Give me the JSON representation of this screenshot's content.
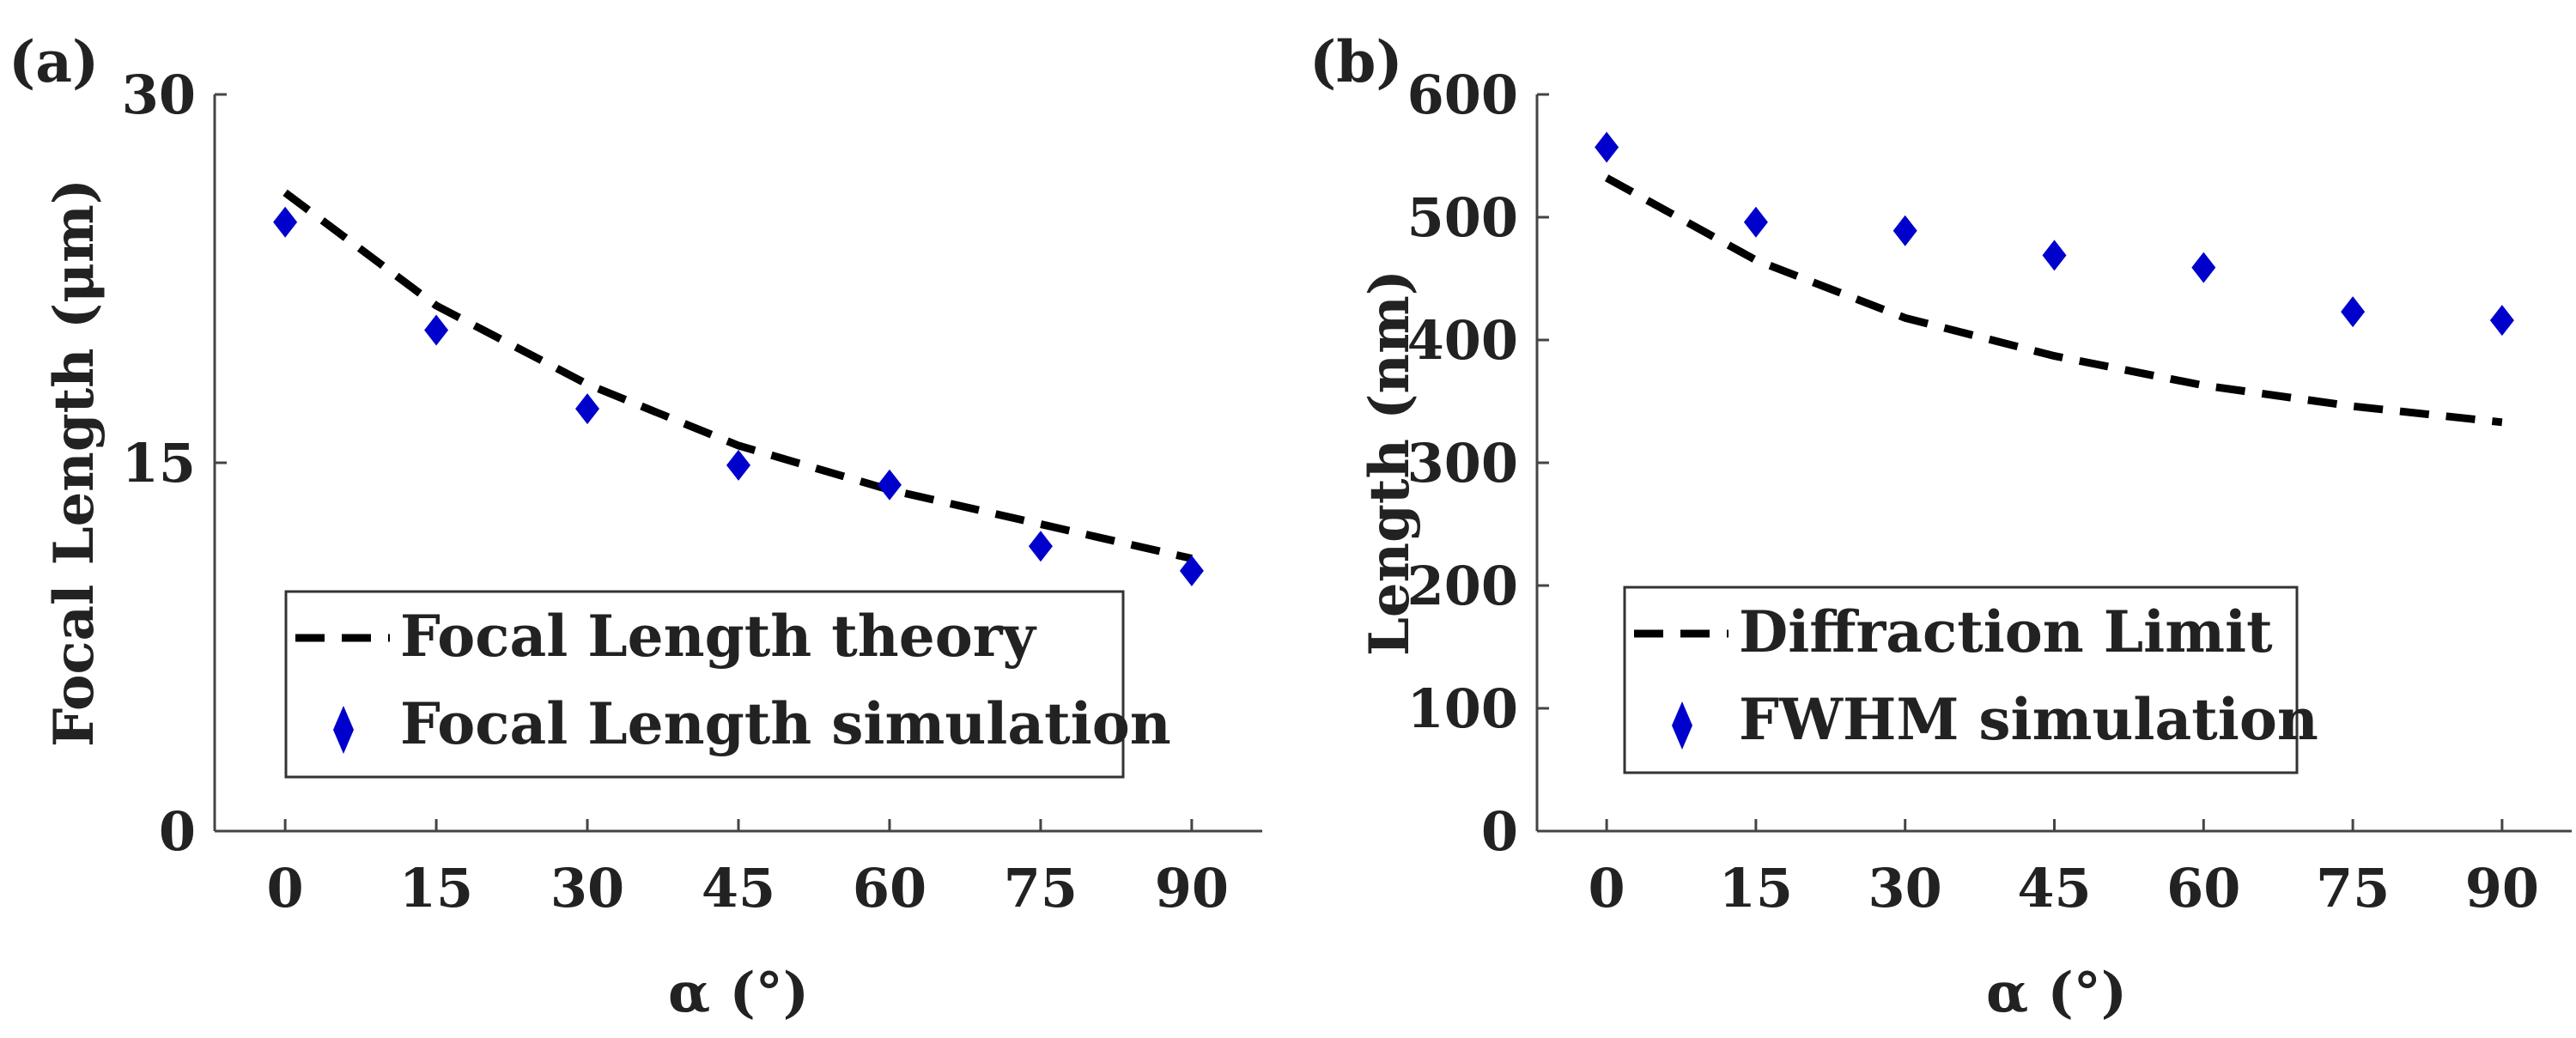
{
  "colors": {
    "marker": "#0000CC",
    "line": "#000000",
    "axis": "#444444",
    "text": "#222222"
  },
  "chart_data": [
    {
      "type": "line",
      "panel_label": "(a)",
      "xlabel": "α (°)",
      "ylabel": "Focal Length (μm)",
      "x": [
        0,
        15,
        30,
        45,
        60,
        75,
        90
      ],
      "xticks": [
        "0",
        "15",
        "30",
        "45",
        "60",
        "75",
        "90"
      ],
      "yticks": [
        "0",
        "15",
        "30"
      ],
      "xlim": [
        -7,
        97
      ],
      "ylim": [
        0,
        30
      ],
      "legend_position": "bottom-right",
      "series": [
        {
          "name": "Focal Length theory",
          "style": "dashed",
          "x": [
            0,
            15,
            30,
            45,
            60,
            75,
            90
          ],
          "values": [
            26.0,
            21.4,
            18.2,
            15.7,
            13.9,
            12.5,
            11.1
          ]
        },
        {
          "name": "Focal Length simulation",
          "style": "diamond",
          "x": [
            0,
            15,
            30,
            45,
            60,
            75,
            90
          ],
          "values": [
            24.8,
            20.4,
            17.2,
            14.9,
            14.1,
            11.6,
            10.6
          ]
        }
      ]
    },
    {
      "type": "line",
      "panel_label": "(b)",
      "xlabel": "α (°)",
      "ylabel": "Length (nm)",
      "x": [
        0,
        15,
        30,
        45,
        60,
        75,
        90
      ],
      "xticks": [
        "0",
        "15",
        "30",
        "45",
        "60",
        "75",
        "90"
      ],
      "yticks": [
        "0",
        "100",
        "200",
        "300",
        "400",
        "500",
        "600"
      ],
      "xlim": [
        -7,
        97
      ],
      "ylim": [
        0,
        600
      ],
      "legend_position": "bottom-left",
      "series": [
        {
          "name": "Diffraction Limit",
          "style": "dashed",
          "x": [
            0,
            15,
            30,
            45,
            60,
            75,
            90
          ],
          "values": [
            532,
            465,
            418,
            387,
            363,
            346,
            333
          ]
        },
        {
          "name": "FWHM simulation",
          "style": "diamond",
          "x": [
            0,
            15,
            30,
            45,
            60,
            75,
            90
          ],
          "values": [
            557,
            496,
            489,
            469,
            459,
            423,
            416
          ]
        }
      ]
    }
  ]
}
